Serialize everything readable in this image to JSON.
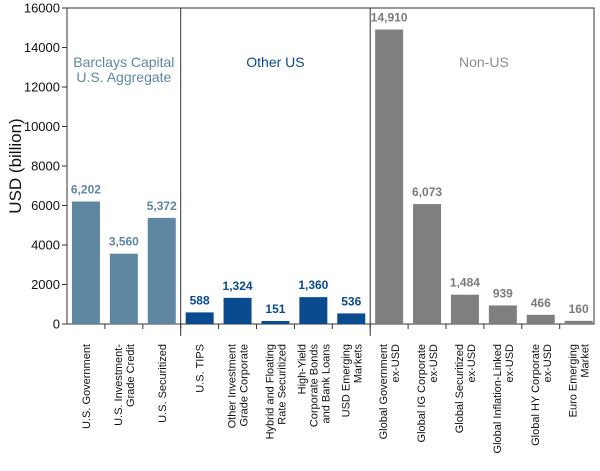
{
  "chart_data": {
    "type": "bar",
    "ylabel": "USD (billion)",
    "xlabel": "",
    "ylim": [
      0,
      16000
    ],
    "yticks": [
      0,
      2000,
      4000,
      6000,
      8000,
      10000,
      12000,
      14000,
      16000
    ],
    "grid": false,
    "groups": [
      {
        "label": [
          "Barclays Capital",
          "U.S. Aggregate"
        ],
        "color": "#5F87A1",
        "label_color": "#5F87A1",
        "value_color": "#5F87A1",
        "bars": [
          {
            "category": [
              "U.S. Government"
            ],
            "value": 6202,
            "label": "6,202"
          },
          {
            "category": [
              "U.S. Investment-",
              "Grade Credit"
            ],
            "value": 3560,
            "label": "3,560"
          },
          {
            "category": [
              "U.S. Securitized"
            ],
            "value": 5372,
            "label": "5,372"
          }
        ]
      },
      {
        "label": [
          "Other US"
        ],
        "color": "#0A4A8F",
        "label_color": "#0A4A8F",
        "value_color": "#0A4A8F",
        "bars": [
          {
            "category": [
              "U.S. TIPS"
            ],
            "value": 588,
            "label": "588"
          },
          {
            "category": [
              "Other Investment",
              "Grade Corporate"
            ],
            "value": 1324,
            "label": "1,324"
          },
          {
            "category": [
              "Hybrid and Floating",
              "Rate Securitized"
            ],
            "value": 151,
            "label": "151"
          },
          {
            "category": [
              "High-Yield",
              "Corporate Bonds",
              "and Bank Loans"
            ],
            "value": 1360,
            "label": "1,360"
          },
          {
            "category": [
              "USD Emerging",
              "Markets"
            ],
            "value": 536,
            "label": "536"
          }
        ]
      },
      {
        "label": [
          "Non-US"
        ],
        "color": "#7F7F7F",
        "label_color": "#8C8C8C",
        "value_color": "#7A7A7A",
        "bars": [
          {
            "category": [
              "Global Government",
              "ex-USD"
            ],
            "value": 14910,
            "label": "14,910"
          },
          {
            "category": [
              "Global IG Corporate",
              "ex-USD"
            ],
            "value": 6073,
            "label": "6,073"
          },
          {
            "category": [
              "Global Securitized",
              "ex-USD"
            ],
            "value": 1484,
            "label": "1,484"
          },
          {
            "category": [
              "Global Inflation-Linked",
              "ex-USD"
            ],
            "value": 939,
            "label": "939"
          },
          {
            "category": [
              "Global HY Corporate",
              "ex-USD"
            ],
            "value": 466,
            "label": "466"
          },
          {
            "category": [
              "Euro Emerging",
              "Market"
            ],
            "value": 160,
            "label": "160"
          }
        ]
      }
    ]
  }
}
